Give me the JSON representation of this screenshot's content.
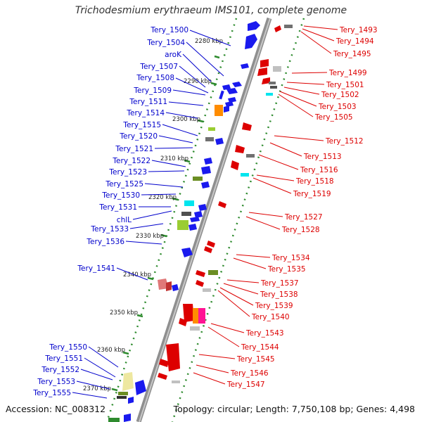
{
  "title": "Trichodesmium erythraeum IMS101, complete genome",
  "footer": {
    "accession": "Accession: NC_008312",
    "topology": "Topology: circular; Length: 7,750,108 bp; Genes: 4,498"
  },
  "colors": {
    "left_label": "#0000cc",
    "right_label": "#dd0000",
    "backbone": "#9a9a9a",
    "track_dots": "#2e8b2e"
  },
  "scale_ticks": [
    "2280 kbp",
    "2290 kbp",
    "2300 kbp",
    "2310 kbp",
    "2320 kbp",
    "2330 kbp",
    "2340 kbp",
    "2350 kbp",
    "2360 kbp",
    "2370 kbp"
  ],
  "left_labels": [
    "Tery_1500",
    "Tery_1504",
    "aroK",
    "Tery_1507",
    "Tery_1508",
    "Tery_1509",
    "Tery_1511",
    "Tery_1514",
    "Tery_1515",
    "Tery_1520",
    "Tery_1521",
    "Tery_1522",
    "Tery_1523",
    "Tery_1525",
    "Tery_1530",
    "Tery_1531",
    "chlL",
    "Tery_1533",
    "Tery_1536",
    "Tery_1541",
    "Tery_1550",
    "Tery_1551",
    "Tery_1552",
    "Tery_1553",
    "Tery_1555"
  ],
  "right_labels": [
    "Tery_1493",
    "Tery_1494",
    "Tery_1495",
    "Tery_1499",
    "Tery_1501",
    "Tery_1502",
    "Tery_1503",
    "Tery_1505",
    "Tery_1512",
    "Tery_1513",
    "Tery_1516",
    "Tery_1518",
    "Tery_1519",
    "Tery_1527",
    "Tery_1528",
    "Tery_1534",
    "Tery_1535",
    "Tery_1537",
    "Tery_1538",
    "Tery_1539",
    "Tery_1540",
    "Tery_1543",
    "Tery_1544",
    "Tery_1545",
    "Tery_1546",
    "Tery_1547"
  ]
}
